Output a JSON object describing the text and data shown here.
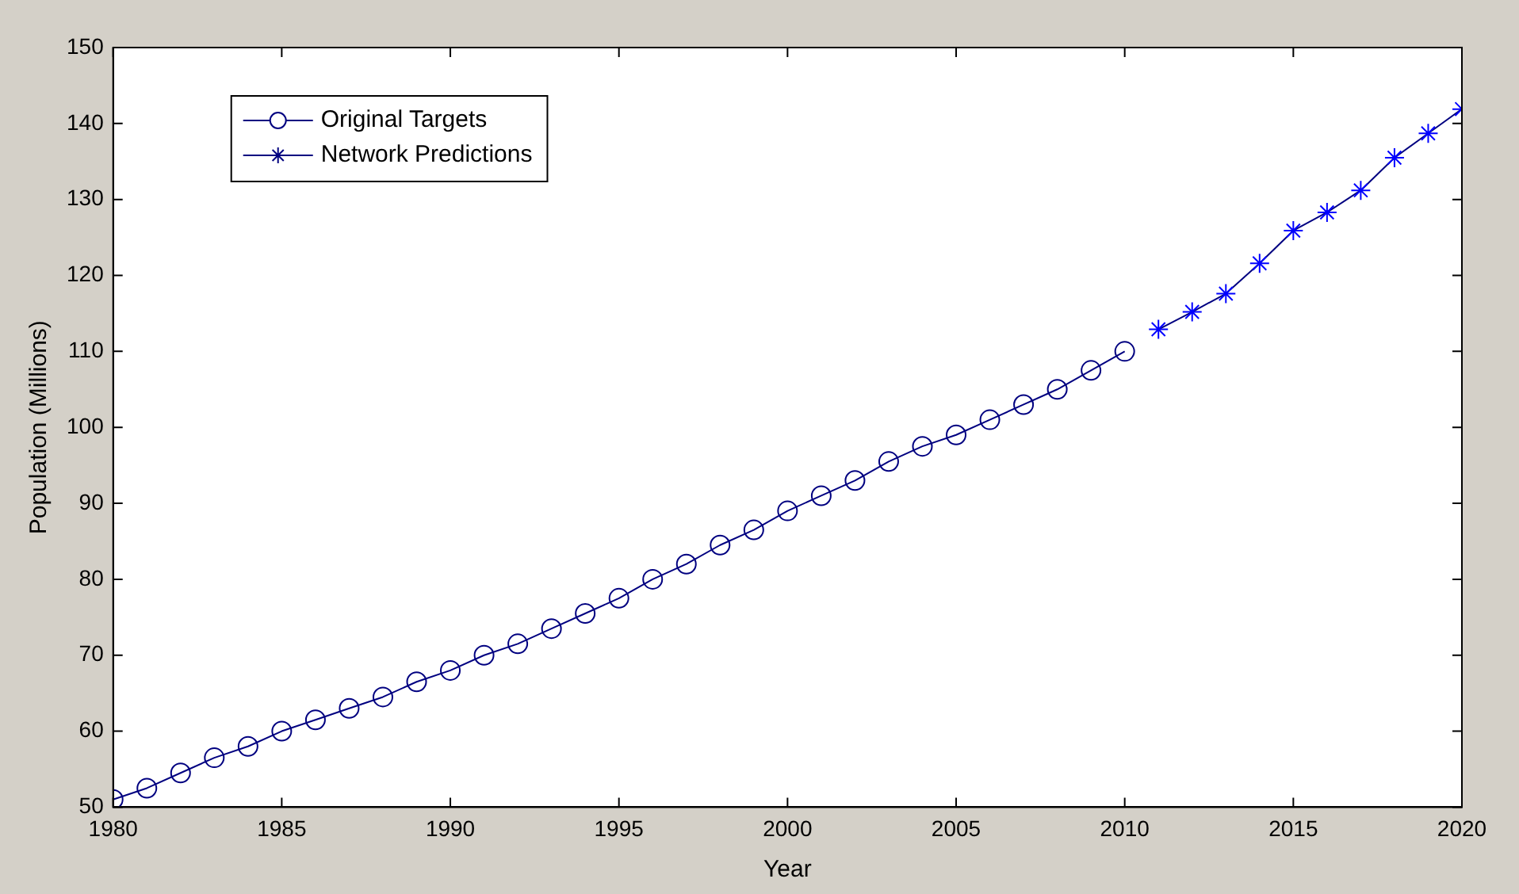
{
  "chart_data": {
    "type": "line",
    "xlabel": "Year",
    "ylabel": "Population (Millions)",
    "xlim": [
      1980,
      2020
    ],
    "xticks": [
      1980,
      1985,
      1990,
      1995,
      2000,
      2005,
      2010,
      2015,
      2020
    ],
    "ylim": [
      50,
      150
    ],
    "yticks": [
      50,
      60,
      70,
      80,
      90,
      100,
      110,
      120,
      130,
      140,
      150
    ],
    "grid": false,
    "legend": "top left",
    "line_style": "solid",
    "series": [
      {
        "name": "Original Targets",
        "color": "#000080",
        "marker": "circle",
        "x": [
          1980,
          1981,
          1982,
          1983,
          1984,
          1985,
          1986,
          1987,
          1988,
          1989,
          1990,
          1991,
          1992,
          1993,
          1994,
          1995,
          1996,
          1997,
          1998,
          1999,
          2000,
          2001,
          2002,
          2003,
          2004,
          2005,
          2006,
          2007,
          2008,
          2009,
          2010
        ],
        "values": [
          51,
          52.5,
          54.5,
          56.5,
          58,
          60,
          61.5,
          63,
          64.5,
          66.5,
          68,
          70,
          71.5,
          73.5,
          75.5,
          77.5,
          80,
          82,
          84.5,
          86.5,
          89,
          91,
          93,
          95.5,
          97.5,
          99,
          101,
          103,
          105,
          107.5,
          110
        ]
      },
      {
        "name": "Network Predictions",
        "color": "#000080",
        "marker": "cross",
        "x": [
          2011,
          2012,
          2013,
          2014,
          2015,
          2016,
          2017,
          2018,
          2019,
          2020
        ],
        "values": [
          112.9,
          115.2,
          117.6,
          121.6,
          125.9,
          128.3,
          131.2,
          135.5,
          138.7,
          141.9
        ]
      }
    ]
  }
}
